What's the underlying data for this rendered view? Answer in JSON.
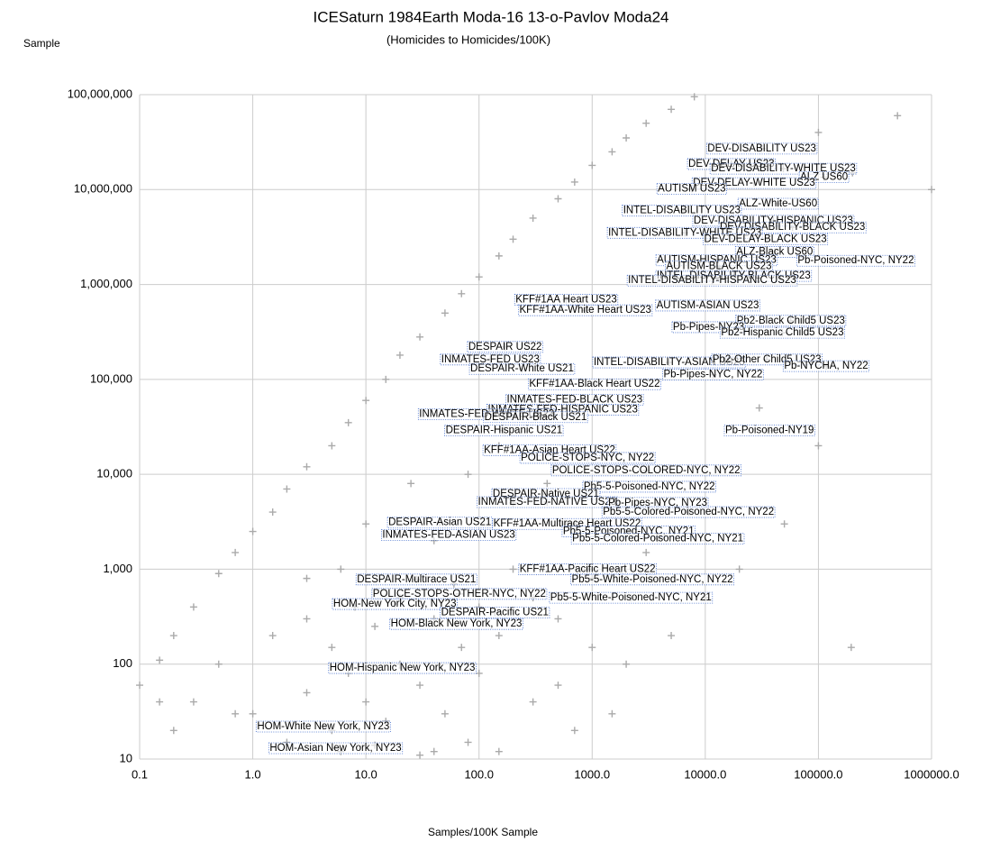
{
  "chart_data": {
    "type": "scatter",
    "title": "ICESaturn 1984Earth Moda-16 13-o-Pavlov Moda24",
    "subtitle": "(Homicides to Homicides/100K)",
    "y_label": "Sample",
    "x_label": "Samples/100K Sample",
    "log_x": true,
    "log_y": true,
    "grid": true,
    "xlim": [
      0.1,
      1000000
    ],
    "ylim": [
      10,
      100000000
    ],
    "xticks": [
      0.1,
      {
        "value": 1,
        "label": "1.0"
      },
      {
        "value": 10,
        "label": "10.0"
      },
      {
        "value": 100,
        "label": "100.0"
      },
      {
        "value": 1000,
        "label": "1000.0"
      },
      {
        "value": 10000,
        "label": "10000.0"
      },
      {
        "value": 100000,
        "label": "100000.0"
      },
      {
        "value": 1000000,
        "label": "1000000.0"
      }
    ],
    "yticks": [
      10,
      100,
      {
        "value": 1000,
        "label": "1,000"
      },
      {
        "value": 10000,
        "label": "10,000"
      },
      {
        "value": 100000,
        "label": "100,000"
      },
      {
        "value": 1000000,
        "label": "1,000,000"
      },
      {
        "value": 10000000,
        "label": "10,000,000"
      },
      {
        "value": 100000000,
        "label": "100,000,000"
      }
    ],
    "series": [
      {
        "color": "#aaaaaa",
        "x": [
          0.1,
          0.15,
          0.2,
          0.3,
          0.5,
          0.7,
          1,
          1.5,
          2,
          3,
          5,
          7,
          10,
          15,
          20,
          30,
          50,
          70,
          100,
          150,
          200,
          300,
          500,
          700,
          1000,
          1500,
          2000,
          3000,
          5000,
          8000,
          500000,
          1000000,
          200000,
          100000,
          195000,
          1,
          2,
          3,
          5,
          7,
          10,
          15,
          20,
          30,
          50,
          70,
          100,
          1.5,
          3,
          5,
          8,
          12,
          20,
          40,
          60,
          100,
          150,
          200,
          300,
          500,
          1000,
          2000,
          5000,
          10000,
          20000,
          50000,
          100000,
          30000,
          10000,
          3000,
          1000,
          700,
          400,
          200,
          150,
          80,
          40,
          25,
          10,
          6,
          3,
          0.3,
          0.5,
          0.7,
          0.2,
          0.15,
          40,
          80,
          150,
          300,
          500,
          1500,
          700,
          30,
          12,
          6
        ],
        "values": [
          60,
          110,
          200,
          400,
          900,
          1500,
          2500,
          4000,
          7000,
          12000,
          20000,
          35000,
          60000,
          100000,
          180000,
          280000,
          500000,
          800000,
          1200000,
          2000000,
          3000000,
          5000000,
          8000000,
          12000000,
          18000000,
          25000000,
          35000000,
          50000000,
          70000000,
          95000000,
          60000000,
          10000000,
          15000000,
          40000000,
          150,
          30,
          15,
          50,
          20,
          80,
          40,
          25,
          100,
          60,
          30,
          150,
          80,
          200,
          300,
          150,
          400,
          250,
          500,
          300,
          700,
          400,
          200,
          1000,
          500,
          300,
          150,
          100,
          200,
          500,
          1000,
          3000,
          20000,
          50000,
          2000,
          1500,
          800,
          3000,
          8000,
          5000,
          20000,
          10000,
          2000,
          8000,
          3000,
          1000,
          800,
          40,
          100,
          30,
          20,
          40,
          12,
          15,
          12,
          40,
          60,
          30,
          20,
          11,
          14,
          12
        ]
      },
      {
        "color": "#aaaaaa",
        "x": [
          31600,
          17000,
          49000,
          112000,
          27000,
          7600,
          44000,
          6200,
          40000,
          59000,
          6600,
          34000,
          41000,
          12600,
          214000,
          13200,
          17800,
          11500,
          590,
          870,
          10500,
          57000,
          10700,
          48000,
          170,
          126,
          4800,
          35000,
          117000,
          240,
          11700,
          1050,
          700,
          550,
          117,
          316,
          166,
          37000,
          420,
          910,
          3000,
          3200,
          390,
          400,
          3800,
          7100,
          45,
          600,
          2100,
          54,
          3800,
          910,
          28,
          3400,
          67,
          2200,
          18,
          138,
          63,
          21,
          4.2,
          5.4
        ],
        "values": [
          27000000,
          18600000,
          16600000,
          13500000,
          11700000,
          10200000,
          7100000,
          6000000,
          4700000,
          4000000,
          3500000,
          3000000,
          2200000,
          1800000,
          1780000,
          1550000,
          1230000,
          1100000,
          690000,
          535000,
          600000,
          415000,
          355000,
          310000,
          220000,
          162000,
          151000,
          162000,
          138000,
          129000,
          112000,
          89000,
          61000,
          48000,
          43000,
          40000,
          29000,
          29000,
          18000,
          14900,
          11000,
          7400,
          6200,
          5100,
          5000,
          4000,
          3100,
          3000,
          2500,
          2300,
          2100,
          1000,
          780,
          780,
          550,
          500,
          430,
          350,
          265,
          91,
          22,
          13
        ],
        "labels": [
          "DEV-DISABILITY US23",
          "DEV-DELAY US23",
          "DEV-DISABILITY-WHITE US23",
          "ALZ US60",
          "DEV-DELAY-WHITE US23",
          "AUTISM US23",
          "ALZ-White-US60",
          "INTEL-DISABILITY US23",
          "DEV-DISABILITY-HISPANIC US23",
          "DEV-DISABILITY-BLACK US23",
          "INTEL-DISABILITY-WHITE US23",
          "DEV-DELAY-BLACK US23",
          "ALZ-Black US60",
          "AUTISM-HISPANIC US23",
          "Pb-Poisoned-NYC, NY22",
          "AUTISM-BLACK US23",
          "INTEL-DISABILITY-BLACK US23",
          "INTEL-DISABILITY-HISPANIC US23",
          "KFF#1AA Heart US23",
          "KFF#1AA-White Heart US23",
          "AUTISM-ASIAN US23",
          "Pb2-Black Child5 US23",
          "Pb-Pipes-NY23",
          "Pb2-Hispanic Child5 US23",
          "DESPAIR US22",
          "INMATES-FED US23",
          "INTEL-DISABILITY-ASIAN US23",
          "Pb2-Other Child5 US23",
          "Pb-NYCHA, NY22",
          "DESPAIR-White US21",
          "Pb-Pipes-NYC, NY22",
          "KFF#1AA-Black Heart US22",
          "INMATES-FED-BLACK US23",
          "INMATES-FED-HISPANIC US23",
          "INMATES-FED-WHITE US23",
          "DESPAIR-Black US21",
          "DESPAIR-Hispanic US21",
          "Pb-Poisoned-NY19",
          "KFF#1AA-Asian Heart US22",
          "POLICE-STOPS-NYC, NY22",
          "POLICE-STOPS-COLORED-NYC, NY22",
          "Pb5-5-Poisoned-NYC, NY22",
          "DESPAIR-Native US21",
          "INMATES-FED-NATIVE US23",
          "Pb-Pipes-NYC, NY23",
          "Pb5-5-Colored-Poisoned-NYC, NY22",
          "DESPAIR-Asian US21",
          "KFF#1AA-Multirace Heart US22",
          "Pb5-5-Poisoned-NYC, NY21",
          "INMATES-FED-ASIAN US23",
          "Pb5-5-Colored-Poisoned-NYC, NY21",
          "KFF#1AA-Pacific Heart US22",
          "DESPAIR-Multirace US21",
          "Pb5-5-White-Poisoned-NYC, NY22",
          "POLICE-STOPS-OTHER-NYC, NY22",
          "Pb5-5-White-Poisoned-NYC, NY21",
          "HOM-New York City, NY23",
          "DESPAIR-Pacific US21",
          "HOM-Black New York, NY23",
          "HOM-Hispanic New York, NY23",
          "HOM-White New York, NY23",
          "HOM-Asian New York, NY23"
        ]
      }
    ]
  }
}
